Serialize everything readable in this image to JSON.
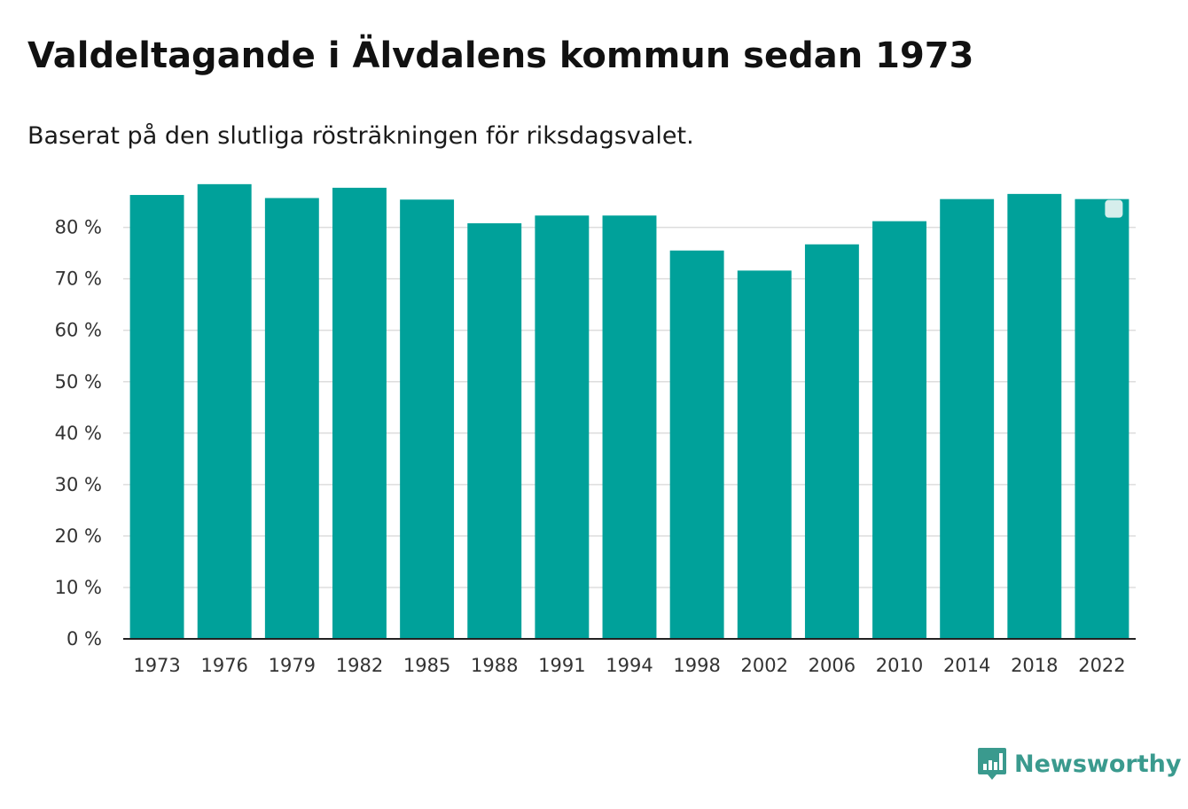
{
  "title": "Valdeltagande i Älvdalens kommun sedan 1973",
  "subtitle": "Baserat på den slutliga rösträkningen för riksdagsvalet.",
  "brand": {
    "name": "Newsworthy",
    "color": "#3a9a8e",
    "icon": "chart-speech-bubble-icon"
  },
  "chart_data": {
    "type": "bar",
    "title": "Valdeltagande i Älvdalens kommun sedan 1973",
    "subtitle": "Baserat på den slutliga rösträkningen för riksdagsvalet.",
    "categories": [
      "1973",
      "1976",
      "1979",
      "1982",
      "1985",
      "1988",
      "1991",
      "1994",
      "1998",
      "2002",
      "2006",
      "2010",
      "2014",
      "2018",
      "2022"
    ],
    "values": [
      86.3,
      88.4,
      85.7,
      87.7,
      85.4,
      80.8,
      82.3,
      82.3,
      75.5,
      71.6,
      76.7,
      81.2,
      85.5,
      86.5,
      85.5
    ],
    "ylim": [
      0,
      90
    ],
    "yticks": [
      0,
      10,
      20,
      30,
      40,
      50,
      60,
      70,
      80
    ],
    "ytick_labels": [
      "0 %",
      "10 %",
      "20 %",
      "30 %",
      "40 %",
      "50 %",
      "60 %",
      "70 %",
      "80 %"
    ],
    "grid": true,
    "legend": "none",
    "bar_color": "#00a19a",
    "highlight_marker_on": "2022"
  }
}
